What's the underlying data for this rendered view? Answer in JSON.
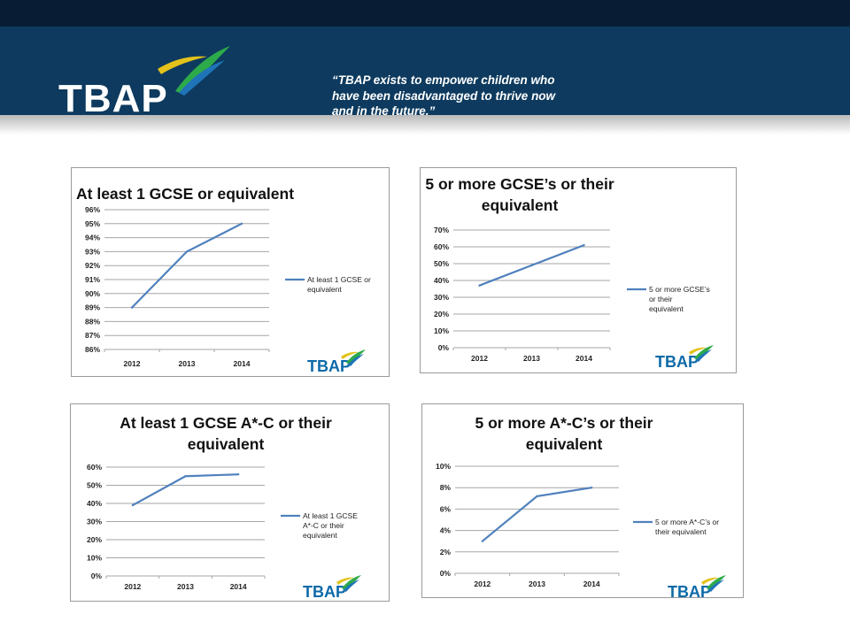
{
  "header": {
    "logo_text": "TBAP",
    "quote": "“TBAP exists to empower children who have been disadvantaged to thrive now and in the future.”"
  },
  "colors": {
    "header_bg": "#0d3a5e",
    "top_strip": "#081d34",
    "line": "#4f81bd",
    "grid": "#a6a6a6",
    "logo_text": "#0d6aa8",
    "logo_swoosh_green": "#2daa4a",
    "logo_swoosh_yellow": "#e3c21b",
    "logo_swoosh_blue": "#1f74b8"
  },
  "chart_data": [
    {
      "type": "line",
      "title": "At least 1 GCSE or equivalent",
      "categories": [
        "2012",
        "2013",
        "2014"
      ],
      "series": [
        {
          "name": "At least 1 GCSE or equivalent",
          "values": [
            89,
            93,
            95
          ]
        }
      ],
      "yticks": [
        "86%",
        "87%",
        "88%",
        "89%",
        "90%",
        "91%",
        "92%",
        "93%",
        "94%",
        "95%",
        "96%"
      ],
      "ylim": [
        86,
        96
      ],
      "grid": true,
      "legend_position": "right",
      "logo_text": "TBAP"
    },
    {
      "type": "line",
      "title": "5 or more GCSE’s or their equivalent",
      "categories": [
        "2012",
        "2013",
        "2014"
      ],
      "series": [
        {
          "name": "5 or more GCSE’s or their equivalent",
          "values": [
            37,
            49,
            61
          ]
        }
      ],
      "yticks": [
        "0%",
        "10%",
        "20%",
        "30%",
        "40%",
        "50%",
        "60%",
        "70%"
      ],
      "ylim": [
        0,
        70
      ],
      "grid": true,
      "legend_position": "right",
      "logo_text": "TBAP"
    },
    {
      "type": "line",
      "title": "At least 1 GCSE A*-C or their equivalent",
      "categories": [
        "2012",
        "2013",
        "2014"
      ],
      "series": [
        {
          "name": "At least 1 GCSE A*-C or their equivalent",
          "values": [
            39,
            55,
            56
          ]
        }
      ],
      "yticks": [
        "0%",
        "10%",
        "20%",
        "30%",
        "40%",
        "50%",
        "60%"
      ],
      "ylim": [
        0,
        60
      ],
      "grid": true,
      "legend_position": "right",
      "logo_text": "TBAP"
    },
    {
      "type": "line",
      "title": "5 or more A*-C’s or their equivalent",
      "categories": [
        "2012",
        "2013",
        "2014"
      ],
      "series": [
        {
          "name": "5 or more A*-C’s or their equivalent",
          "values": [
            3,
            7.2,
            8
          ]
        }
      ],
      "yticks": [
        "0%",
        "2%",
        "4%",
        "6%",
        "8%",
        "10%"
      ],
      "ylim": [
        0,
        10
      ],
      "grid": true,
      "legend_position": "right",
      "logo_text": "TBAP"
    }
  ]
}
